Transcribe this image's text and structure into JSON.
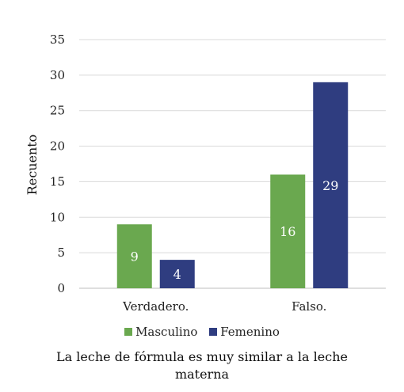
{
  "chart_data": {
    "type": "bar",
    "categories": [
      "Verdadero.",
      "Falso."
    ],
    "series": [
      {
        "name": "Masculino",
        "values": [
          9,
          16
        ],
        "color": "#6aa84f"
      },
      {
        "name": "Femenino",
        "values": [
          4,
          29
        ],
        "color": "#2f3d80"
      }
    ],
    "ylabel": "Recuento",
    "xlabel": "La leche de fórmula es muy similar a la leche materna",
    "ylim": [
      0,
      35
    ],
    "yticks": [
      0,
      5,
      10,
      15,
      20,
      25,
      30,
      35
    ],
    "grid": true,
    "legend_position": "bottom",
    "data_labels": true
  }
}
